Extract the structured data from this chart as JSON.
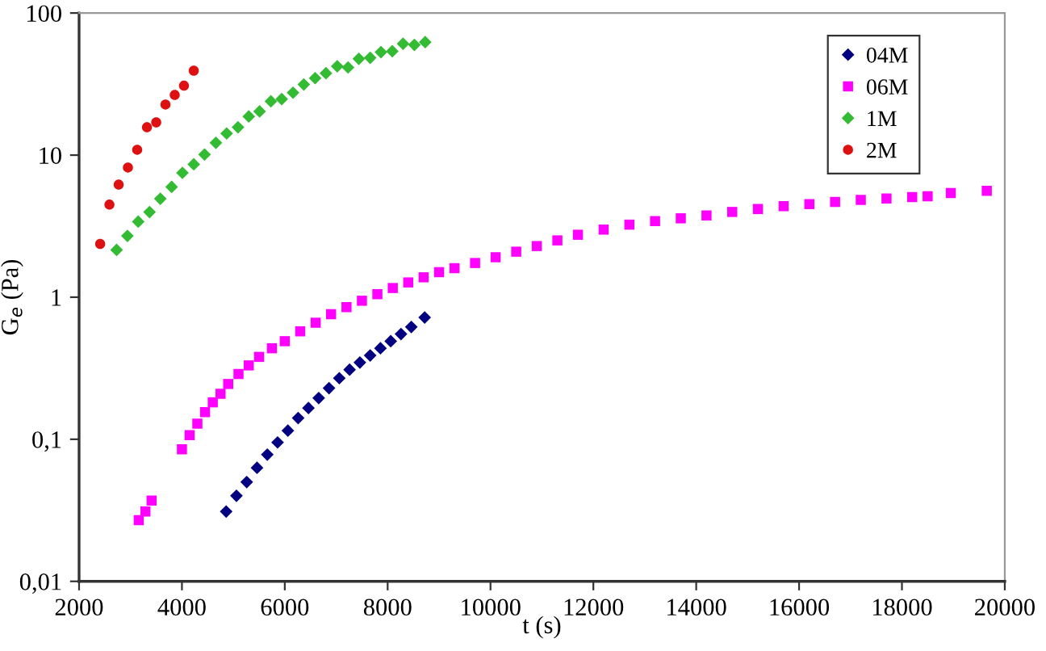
{
  "chart_data": {
    "type": "scatter",
    "xlabel": "t (s)",
    "ylabel": "G$_{e}$ (Pa)",
    "log": "y",
    "grid": false,
    "legend": "top right",
    "xlim": [
      2000,
      20000
    ],
    "xticks": [
      2000,
      4000,
      6000,
      8000,
      10000,
      12000,
      14000,
      16000,
      18000,
      20000
    ],
    "ylim": [
      0.01,
      100
    ],
    "yticks": [
      {
        "value": 0.01,
        "label": "0,01"
      },
      {
        "value": 0.1,
        "label": "0,1"
      },
      1,
      10,
      100
    ],
    "series": [
      {
        "name": "04M",
        "color": "#000080",
        "marker": "diamond",
        "x": [
          4860,
          5060,
          5260,
          5460,
          5660,
          5860,
          6060,
          6260,
          6460,
          6660,
          6860,
          7060,
          7260,
          7460,
          7660,
          7860,
          8060,
          8260,
          8460,
          8720
        ],
        "values": [
          0.031,
          0.04,
          0.05,
          0.063,
          0.078,
          0.095,
          0.115,
          0.141,
          0.166,
          0.195,
          0.229,
          0.269,
          0.309,
          0.347,
          0.389,
          0.437,
          0.49,
          0.55,
          0.617,
          0.72
        ]
      },
      {
        "name": "06M",
        "color": "#ff00ff",
        "marker": "square",
        "x": [
          3160,
          3290,
          3410,
          4000,
          4150,
          4300,
          4450,
          4600,
          4750,
          4900,
          5100,
          5300,
          5500,
          5750,
          6000,
          6300,
          6600,
          6900,
          7200,
          7500,
          7800,
          8100,
          8400,
          8700,
          9000,
          9300,
          9700,
          10100,
          10500,
          10900,
          11300,
          11700,
          12200,
          12700,
          13200,
          13700,
          14200,
          14700,
          15200,
          15700,
          16200,
          16700,
          17200,
          17700,
          18200,
          18500,
          18950,
          19650
        ],
        "values": [
          0.027,
          0.031,
          0.037,
          0.085,
          0.107,
          0.129,
          0.155,
          0.182,
          0.209,
          0.245,
          0.288,
          0.331,
          0.38,
          0.437,
          0.49,
          0.575,
          0.661,
          0.759,
          0.851,
          0.944,
          1.05,
          1.16,
          1.27,
          1.38,
          1.5,
          1.6,
          1.74,
          1.91,
          2.09,
          2.29,
          2.51,
          2.75,
          2.99,
          3.24,
          3.43,
          3.59,
          3.76,
          3.98,
          4.17,
          4.37,
          4.52,
          4.68,
          4.84,
          4.95,
          5.07,
          5.13,
          5.4,
          5.6
        ]
      },
      {
        "name": "1M",
        "color": "#33bb33",
        "marker": "diamond",
        "x": [
          2730,
          2940,
          3150,
          3370,
          3580,
          3800,
          4010,
          4230,
          4440,
          4660,
          4870,
          5090,
          5300,
          5510,
          5730,
          5940,
          6160,
          6370,
          6590,
          6800,
          7020,
          7230,
          7440,
          7660,
          7870,
          8090,
          8300,
          8520,
          8730
        ],
        "values": [
          2.15,
          2.7,
          3.4,
          3.97,
          4.93,
          5.97,
          7.5,
          8.61,
          10.1,
          12.2,
          14.2,
          15.7,
          18.7,
          20.3,
          23.9,
          24.8,
          27.5,
          31.4,
          34.8,
          37.7,
          42.2,
          41.4,
          47.6,
          48.4,
          53.0,
          53.8,
          60.8,
          59.7,
          62.4
        ]
      },
      {
        "name": "2M",
        "color": "#dd1111",
        "marker": "circle",
        "x": [
          2410,
          2590,
          2770,
          2950,
          3130,
          3320,
          3500,
          3680,
          3860,
          4040,
          4230
        ],
        "values": [
          2.37,
          4.48,
          6.2,
          8.18,
          10.9,
          15.7,
          17.0,
          22.7,
          26.5,
          30.8,
          39.3
        ]
      }
    ]
  }
}
